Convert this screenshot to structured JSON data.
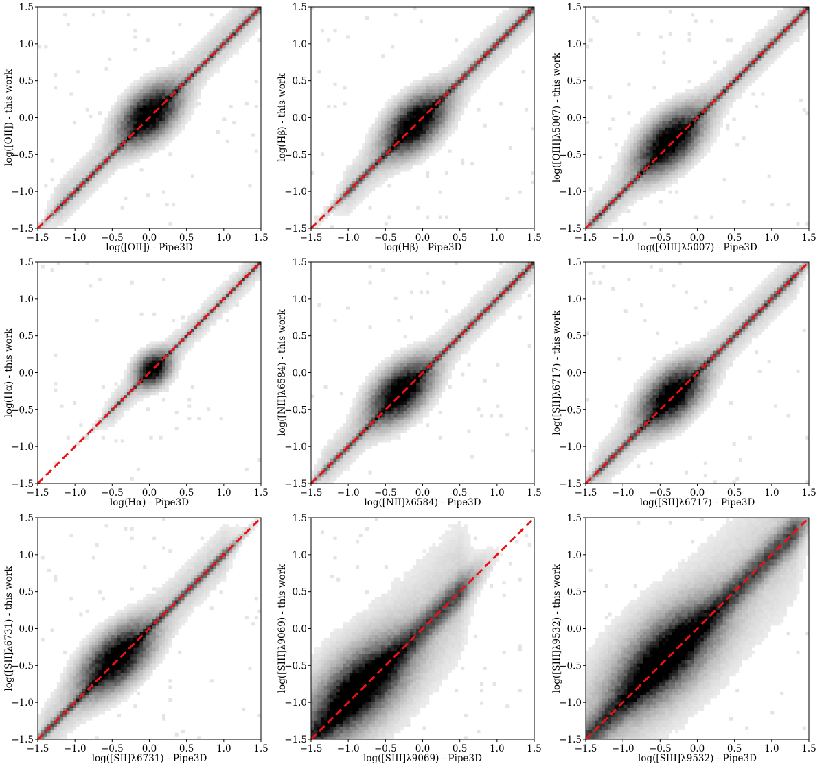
{
  "chart_data": [
    {
      "type": "heatmap",
      "xlabel": "log([OII]) - Pipe3D",
      "ylabel": "log([OII]) - this work",
      "xlim": [
        -1.5,
        1.5
      ],
      "ylim": [
        -1.5,
        1.5
      ],
      "xticks": [
        "−1.5",
        "−1.0",
        "−0.5",
        "0.0",
        "0.5",
        "1.0",
        "1.5"
      ],
      "yticks": [
        "−1.5",
        "−1.0",
        "−0.5",
        "0.0",
        "0.5",
        "1.0",
        "1.5"
      ],
      "reference_line": {
        "x": [
          -1.5,
          1.5
        ],
        "y": [
          -1.5,
          1.5
        ],
        "style": "dashed",
        "color": "#ee1111"
      },
      "density": {
        "core": [
          0.0,
          0.05
        ],
        "core_spread": 0.28,
        "main_spread": 0.03,
        "main_range": [
          -1.2,
          1.5
        ],
        "upward_excess": 0.2
      }
    },
    {
      "type": "heatmap",
      "xlabel": "log(Hβ) - Pipe3D",
      "ylabel": "log(Hβ) - this work",
      "xlim": [
        -1.5,
        1.5
      ],
      "ylim": [
        -1.5,
        1.5
      ],
      "xticks": [
        "−1.5",
        "−1.0",
        "−0.5",
        "0.0",
        "0.5",
        "1.0",
        "1.5"
      ],
      "yticks": [
        "−1.5",
        "−1.0",
        "−0.5",
        "0.0",
        "0.5",
        "1.0",
        "1.5"
      ],
      "reference_line": {
        "x": [
          -1.5,
          1.5
        ],
        "y": [
          -1.5,
          1.5
        ],
        "style": "dashed",
        "color": "#ee1111"
      },
      "density": {
        "core": [
          -0.1,
          -0.08
        ],
        "core_spread": 0.3,
        "main_spread": 0.035,
        "main_range": [
          -1.0,
          1.5
        ],
        "upward_excess": 0.08
      }
    },
    {
      "type": "heatmap",
      "xlabel": "log([OIII]λ5007) - Pipe3D",
      "ylabel": "log([OIII]λ5007) - this work",
      "xlim": [
        -1.5,
        1.5
      ],
      "ylim": [
        -1.5,
        1.5
      ],
      "xticks": [
        "−1.5",
        "−1.0",
        "−0.5",
        "0.0",
        "0.5",
        "1.0",
        "1.5"
      ],
      "yticks": [
        "−1.5",
        "−1.0",
        "−0.5",
        "0.0",
        "0.5",
        "1.0",
        "1.5"
      ],
      "reference_line": {
        "x": [
          -1.5,
          1.5
        ],
        "y": [
          -1.5,
          1.5
        ],
        "style": "dashed",
        "color": "#ee1111"
      },
      "density": {
        "core": [
          -0.4,
          -0.3
        ],
        "core_spread": 0.32,
        "main_spread": 0.03,
        "main_range": [
          -1.4,
          1.5
        ],
        "upward_excess": 0.15
      }
    },
    {
      "type": "heatmap",
      "xlabel": "log(Hα) - Pipe3D",
      "ylabel": "log(Hα) - this work",
      "xlim": [
        -1.5,
        1.5
      ],
      "ylim": [
        -1.5,
        1.5
      ],
      "xticks": [
        "−1.5",
        "−1.0",
        "−0.5",
        "0.0",
        "0.5",
        "1.0",
        "1.5"
      ],
      "yticks": [
        "−1.5",
        "−1.0",
        "−0.5",
        "0.0",
        "0.5",
        "1.0",
        "1.5"
      ],
      "reference_line": {
        "x": [
          -1.5,
          1.5
        ],
        "y": [
          -1.5,
          1.5
        ],
        "style": "dashed",
        "color": "#ee1111"
      },
      "density": {
        "core": [
          0.05,
          0.05
        ],
        "core_spread": 0.15,
        "main_spread": 0.02,
        "main_range": [
          -0.5,
          1.5
        ],
        "upward_excess": 0.0
      }
    },
    {
      "type": "heatmap",
      "xlabel": "log([NII]λ6584) - Pipe3D",
      "ylabel": "log([NII]λ6584) - this work",
      "xlim": [
        -1.5,
        1.5
      ],
      "ylim": [
        -1.5,
        1.5
      ],
      "xticks": [
        "−1.5",
        "−1.0",
        "−0.5",
        "0.0",
        "0.5",
        "1.0",
        "1.5"
      ],
      "yticks": [
        "−1.5",
        "−1.0",
        "−0.5",
        "0.0",
        "0.5",
        "1.0",
        "1.5"
      ],
      "reference_line": {
        "x": [
          -1.5,
          1.5
        ],
        "y": [
          -1.5,
          1.5
        ],
        "style": "dashed",
        "color": "#ee1111"
      },
      "density": {
        "core": [
          -0.3,
          -0.25
        ],
        "core_spread": 0.3,
        "main_spread": 0.03,
        "main_range": [
          -1.3,
          1.5
        ],
        "upward_excess": 0.15
      }
    },
    {
      "type": "heatmap",
      "xlabel": "log([SII]λ6717) - Pipe3D",
      "ylabel": "log([SII]λ6717) - this work",
      "xlim": [
        -1.5,
        1.5
      ],
      "ylim": [
        -1.5,
        1.5
      ],
      "xticks": [
        "−1.5",
        "−1.0",
        "−0.5",
        "0.0",
        "0.5",
        "1.0",
        "1.5"
      ],
      "yticks": [
        "−1.5",
        "−1.0",
        "−0.5",
        "0.0",
        "0.5",
        "1.0",
        "1.5"
      ],
      "reference_line": {
        "x": [
          -1.5,
          1.5
        ],
        "y": [
          -1.5,
          1.5
        ],
        "style": "dashed",
        "color": "#ee1111"
      },
      "density": {
        "core": [
          -0.35,
          -0.3
        ],
        "core_spread": 0.3,
        "main_spread": 0.035,
        "main_range": [
          -1.3,
          1.3
        ],
        "upward_excess": 0.12
      }
    },
    {
      "type": "heatmap",
      "xlabel": "log([SII]λ6731) - Pipe3D",
      "ylabel": "log([SII]λ6731) - this work",
      "xlim": [
        -1.5,
        1.5
      ],
      "ylim": [
        -1.5,
        1.5
      ],
      "xticks": [
        "−1.5",
        "−1.0",
        "−0.5",
        "0.0",
        "0.5",
        "1.0",
        "1.5"
      ],
      "yticks": [
        "−1.5",
        "−1.0",
        "−0.5",
        "0.0",
        "0.5",
        "1.0",
        "1.5"
      ],
      "reference_line": {
        "x": [
          -1.5,
          1.5
        ],
        "y": [
          -1.5,
          1.5
        ],
        "style": "dashed",
        "color": "#ee1111"
      },
      "density": {
        "core": [
          -0.45,
          -0.4
        ],
        "core_spread": 0.35,
        "main_spread": 0.04,
        "main_range": [
          -1.4,
          1.0
        ],
        "upward_excess": 0.12
      }
    },
    {
      "type": "heatmap",
      "xlabel": "log([SIII]λ9069) - Pipe3D",
      "ylabel": "log([SIII]λ9069) - this work",
      "xlim": [
        -1.5,
        1.5
      ],
      "ylim": [
        -1.5,
        1.5
      ],
      "xticks": [
        "−1.5",
        "−1.0",
        "−0.5",
        "0.0",
        "0.5",
        "1.0",
        "1.5"
      ],
      "yticks": [
        "−1.5",
        "−1.0",
        "−0.5",
        "0.0",
        "0.5",
        "1.0",
        "1.5"
      ],
      "reference_line": {
        "x": [
          -1.5,
          1.5
        ],
        "y": [
          -1.5,
          1.5
        ],
        "style": "dashed",
        "color": "#ee1111"
      },
      "density": {
        "core": [
          -0.85,
          -0.8
        ],
        "core_spread": 0.5,
        "main_spread": 0.13,
        "main_range": [
          -1.5,
          0.5
        ],
        "upward_excess": 0.15
      }
    },
    {
      "type": "heatmap",
      "xlabel": "log([SIII]λ9532) - Pipe3D",
      "ylabel": "log([SIII]λ9532) - this work",
      "xlim": [
        -1.5,
        1.5
      ],
      "ylim": [
        -1.5,
        1.5
      ],
      "xticks": [
        "−1.5",
        "−1.0",
        "−0.5",
        "0.0",
        "0.5",
        "1.0",
        "1.5"
      ],
      "yticks": [
        "−1.5",
        "−1.0",
        "−0.5",
        "0.0",
        "0.5",
        "1.0",
        "1.5"
      ],
      "reference_line": {
        "x": [
          -1.5,
          1.5
        ],
        "y": [
          -1.5,
          1.5
        ],
        "style": "dashed",
        "color": "#ee1111"
      },
      "density": {
        "core": [
          -0.45,
          -0.35
        ],
        "core_spread": 0.55,
        "main_spread": 0.14,
        "main_range": [
          -1.5,
          1.3
        ],
        "upward_excess": 0.15
      }
    }
  ]
}
